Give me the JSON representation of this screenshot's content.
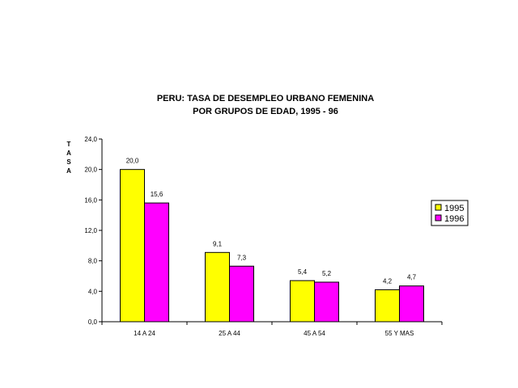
{
  "chart_data": {
    "type": "bar",
    "title": [
      "PERU: TASA DE DESEMPLEO URBANO  FEMENINA",
      "POR GRUPOS DE EDAD, 1995 - 96"
    ],
    "ylabel": "TASA",
    "xlabel": "",
    "categories": [
      "14 A 24",
      "25 A 44",
      "45 A 54",
      "55 Y MAS"
    ],
    "series": [
      {
        "name": "1995",
        "values": [
          20.0,
          9.1,
          5.4,
          4.2
        ],
        "labels": [
          "20,0",
          "9,1",
          "5,4",
          "4,2"
        ],
        "color": "#ffff00"
      },
      {
        "name": "1996",
        "values": [
          15.6,
          7.3,
          5.2,
          4.7
        ],
        "labels": [
          "15,6",
          "7,3",
          "5,2",
          "4,7"
        ],
        "color": "#ff00ff"
      }
    ],
    "ylim": [
      0,
      24
    ],
    "yticks": [
      0,
      4,
      8,
      12,
      16,
      20,
      24
    ],
    "ytick_labels": [
      "0,0",
      "4,0",
      "8,0",
      "12,0",
      "16,0",
      "20,0",
      "24,0"
    ],
    "grid": false,
    "legend": "right"
  }
}
